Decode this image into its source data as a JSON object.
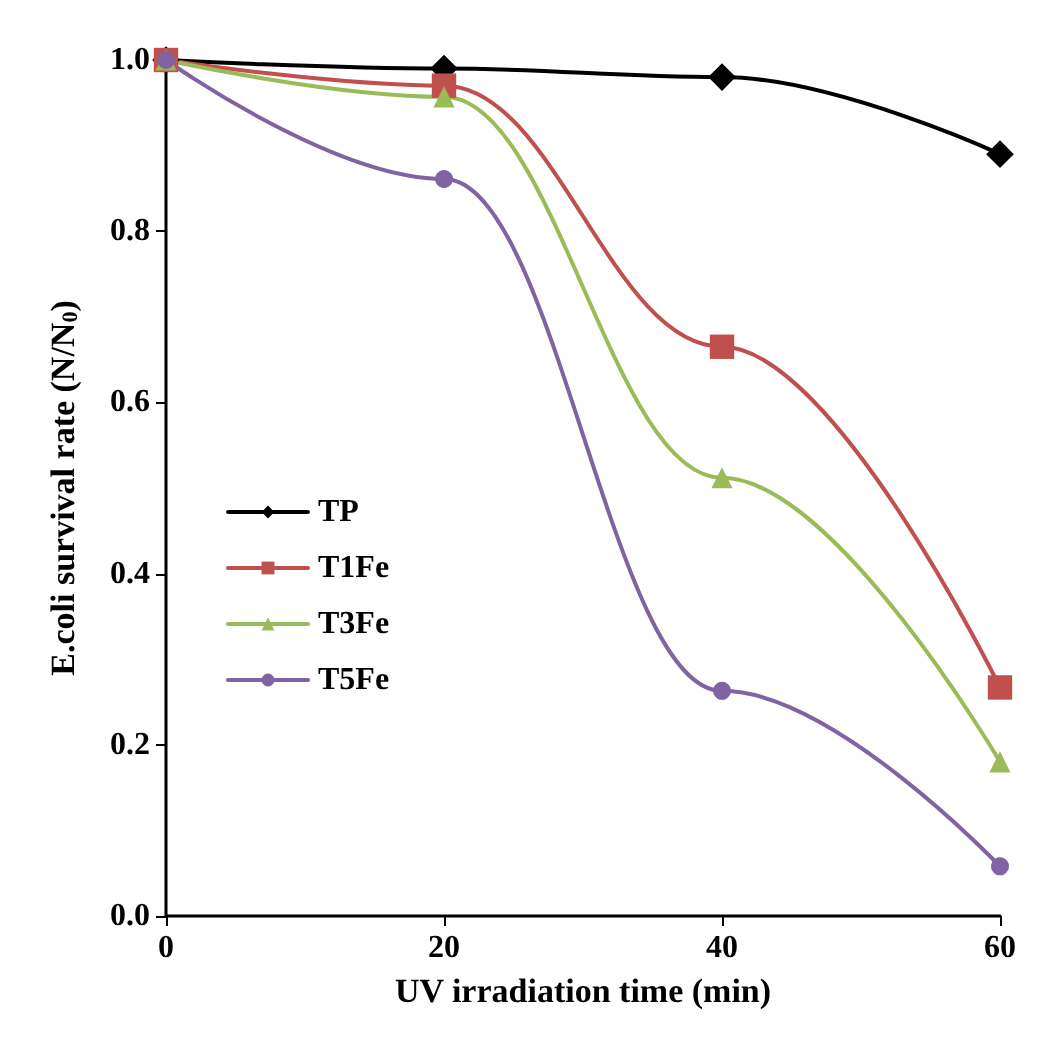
{
  "chart_data": {
    "type": "line",
    "xlabel": "UV irradiation time (min)",
    "ylabel": "E.coli survival rate (N/N$_{0}$)",
    "x": [
      0,
      20,
      40,
      60
    ],
    "series": [
      {
        "name": "TP",
        "color": "#000000",
        "marker": "diamond",
        "values": [
          1.0,
          0.99,
          0.98,
          0.89
        ]
      },
      {
        "name": "T1Fe",
        "color": "#c0504d",
        "marker": "square",
        "values": [
          1.0,
          0.97,
          0.665,
          0.267
        ]
      },
      {
        "name": "T3Fe",
        "color": "#9bbb59",
        "marker": "triangle",
        "values": [
          1.0,
          0.957,
          0.512,
          0.18
        ]
      },
      {
        "name": "T5Fe",
        "color": "#8064a2",
        "marker": "circle",
        "values": [
          1.0,
          0.861,
          0.263,
          0.058
        ]
      }
    ],
    "xlim": [
      0,
      60
    ],
    "xticks": [
      0,
      20,
      40,
      60
    ],
    "ylim": [
      0,
      1
    ],
    "yticks": [
      {
        "value": 0,
        "label": "0.0"
      },
      {
        "value": 0.2,
        "label": "0.2"
      },
      {
        "value": 0.4,
        "label": "0.4"
      },
      {
        "value": 0.6,
        "label": "0.6"
      },
      {
        "value": 0.8,
        "label": "0.8"
      },
      {
        "value": 1,
        "label": "1.0"
      }
    ],
    "grid": false,
    "legend": "left",
    "line_style": "solid"
  }
}
